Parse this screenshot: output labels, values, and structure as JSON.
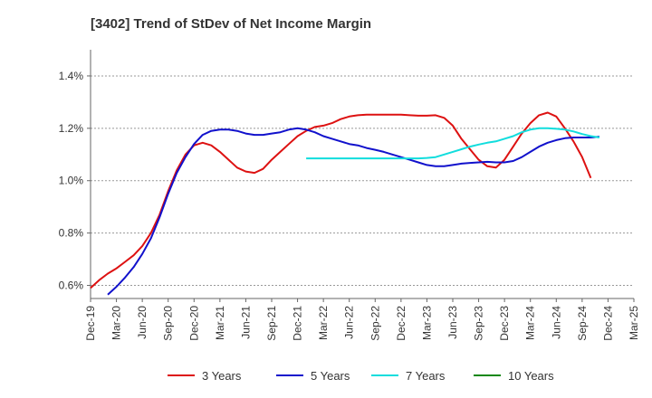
{
  "chart_data": {
    "type": "line",
    "title": "[3402]  Trend of StDev of Net Income Margin",
    "xlabel": "",
    "ylabel": "",
    "ylim": [
      0.55,
      1.5
    ],
    "yticks": [
      "0.6%",
      "0.8%",
      "1.0%",
      "1.2%",
      "1.4%"
    ],
    "ytick_values": [
      0.6,
      0.8,
      1.0,
      1.2,
      1.4
    ],
    "xticks": [
      "Dec-19",
      "Mar-20",
      "Jun-20",
      "Sep-20",
      "Dec-20",
      "Mar-21",
      "Jun-21",
      "Sep-21",
      "Dec-21",
      "Mar-22",
      "Jun-22",
      "Sep-22",
      "Dec-22",
      "Mar-23",
      "Jun-23",
      "Sep-23",
      "Dec-23",
      "Mar-24",
      "Jun-24",
      "Sep-24",
      "Dec-24",
      "Mar-25"
    ],
    "grid": true,
    "legend_position": "bottom",
    "series": [
      {
        "name": "3 Years",
        "color": "#dd1111",
        "points": [
          [
            0,
            0.59
          ],
          [
            1,
            0.62
          ],
          [
            2,
            0.645
          ],
          [
            3,
            0.665
          ],
          [
            4,
            0.69
          ],
          [
            5,
            0.715
          ],
          [
            6,
            0.75
          ],
          [
            7,
            0.8
          ],
          [
            8,
            0.87
          ],
          [
            9,
            0.96
          ],
          [
            10,
            1.04
          ],
          [
            11,
            1.1
          ],
          [
            12,
            1.135
          ],
          [
            13,
            1.145
          ],
          [
            14,
            1.135
          ],
          [
            15,
            1.11
          ],
          [
            16,
            1.08
          ],
          [
            17,
            1.05
          ],
          [
            18,
            1.035
          ],
          [
            19,
            1.03
          ],
          [
            20,
            1.045
          ],
          [
            21,
            1.08
          ],
          [
            22,
            1.11
          ],
          [
            23,
            1.14
          ],
          [
            24,
            1.17
          ],
          [
            25,
            1.19
          ],
          [
            26,
            1.205
          ],
          [
            27,
            1.21
          ],
          [
            28,
            1.22
          ],
          [
            29,
            1.235
          ],
          [
            30,
            1.245
          ],
          [
            31,
            1.25
          ],
          [
            32,
            1.252
          ],
          [
            33,
            1.252
          ],
          [
            34,
            1.252
          ],
          [
            35,
            1.252
          ],
          [
            36,
            1.252
          ],
          [
            37,
            1.25
          ],
          [
            38,
            1.248
          ],
          [
            39,
            1.248
          ],
          [
            40,
            1.25
          ],
          [
            41,
            1.24
          ],
          [
            42,
            1.21
          ],
          [
            43,
            1.16
          ],
          [
            44,
            1.12
          ],
          [
            45,
            1.08
          ],
          [
            46,
            1.055
          ],
          [
            47,
            1.05
          ],
          [
            48,
            1.08
          ],
          [
            49,
            1.13
          ],
          [
            50,
            1.18
          ],
          [
            51,
            1.22
          ],
          [
            52,
            1.25
          ],
          [
            53,
            1.26
          ],
          [
            54,
            1.245
          ],
          [
            55,
            1.2
          ],
          [
            56,
            1.15
          ],
          [
            57,
            1.09
          ],
          [
            58,
            1.01
          ]
        ]
      },
      {
        "name": "5 Years",
        "color": "#1111cc",
        "points": [
          [
            2,
            0.565
          ],
          [
            3,
            0.595
          ],
          [
            4,
            0.63
          ],
          [
            5,
            0.67
          ],
          [
            6,
            0.72
          ],
          [
            7,
            0.78
          ],
          [
            8,
            0.86
          ],
          [
            9,
            0.95
          ],
          [
            10,
            1.03
          ],
          [
            11,
            1.09
          ],
          [
            12,
            1.14
          ],
          [
            13,
            1.175
          ],
          [
            14,
            1.19
          ],
          [
            15,
            1.195
          ],
          [
            16,
            1.195
          ],
          [
            17,
            1.19
          ],
          [
            18,
            1.18
          ],
          [
            19,
            1.175
          ],
          [
            20,
            1.175
          ],
          [
            21,
            1.18
          ],
          [
            22,
            1.185
          ],
          [
            23,
            1.195
          ],
          [
            24,
            1.2
          ],
          [
            25,
            1.195
          ],
          [
            26,
            1.185
          ],
          [
            27,
            1.17
          ],
          [
            28,
            1.16
          ],
          [
            29,
            1.15
          ],
          [
            30,
            1.14
          ],
          [
            31,
            1.135
          ],
          [
            32,
            1.125
          ],
          [
            33,
            1.118
          ],
          [
            34,
            1.11
          ],
          [
            35,
            1.1
          ],
          [
            36,
            1.09
          ],
          [
            37,
            1.08
          ],
          [
            38,
            1.07
          ],
          [
            39,
            1.06
          ],
          [
            40,
            1.055
          ],
          [
            41,
            1.055
          ],
          [
            42,
            1.06
          ],
          [
            43,
            1.065
          ],
          [
            44,
            1.068
          ],
          [
            45,
            1.07
          ],
          [
            46,
            1.072
          ],
          [
            47,
            1.07
          ],
          [
            48,
            1.07
          ],
          [
            49,
            1.075
          ],
          [
            50,
            1.09
          ],
          [
            51,
            1.11
          ],
          [
            52,
            1.13
          ],
          [
            53,
            1.145
          ],
          [
            54,
            1.155
          ],
          [
            55,
            1.162
          ],
          [
            56,
            1.165
          ],
          [
            57,
            1.165
          ],
          [
            58,
            1.165
          ],
          [
            59,
            1.168
          ]
        ]
      },
      {
        "name": "7 Years",
        "color": "#11dddd",
        "points": [
          [
            25,
            1.085
          ],
          [
            26,
            1.085
          ],
          [
            27,
            1.085
          ],
          [
            28,
            1.085
          ],
          [
            29,
            1.085
          ],
          [
            30,
            1.085
          ],
          [
            31,
            1.085
          ],
          [
            32,
            1.085
          ],
          [
            33,
            1.085
          ],
          [
            34,
            1.085
          ],
          [
            35,
            1.085
          ],
          [
            36,
            1.085
          ],
          [
            37,
            1.085
          ],
          [
            38,
            1.085
          ],
          [
            39,
            1.087
          ],
          [
            40,
            1.09
          ],
          [
            41,
            1.1
          ],
          [
            42,
            1.11
          ],
          [
            43,
            1.12
          ],
          [
            44,
            1.13
          ],
          [
            45,
            1.138
          ],
          [
            46,
            1.145
          ],
          [
            47,
            1.15
          ],
          [
            48,
            1.16
          ],
          [
            49,
            1.17
          ],
          [
            50,
            1.185
          ],
          [
            51,
            1.195
          ],
          [
            52,
            1.2
          ],
          [
            53,
            1.2
          ],
          [
            54,
            1.198
          ],
          [
            55,
            1.195
          ],
          [
            56,
            1.188
          ],
          [
            57,
            1.178
          ],
          [
            58,
            1.17
          ],
          [
            59,
            1.165
          ]
        ]
      },
      {
        "name": "10 Years",
        "color": "#118811",
        "points": []
      }
    ]
  }
}
